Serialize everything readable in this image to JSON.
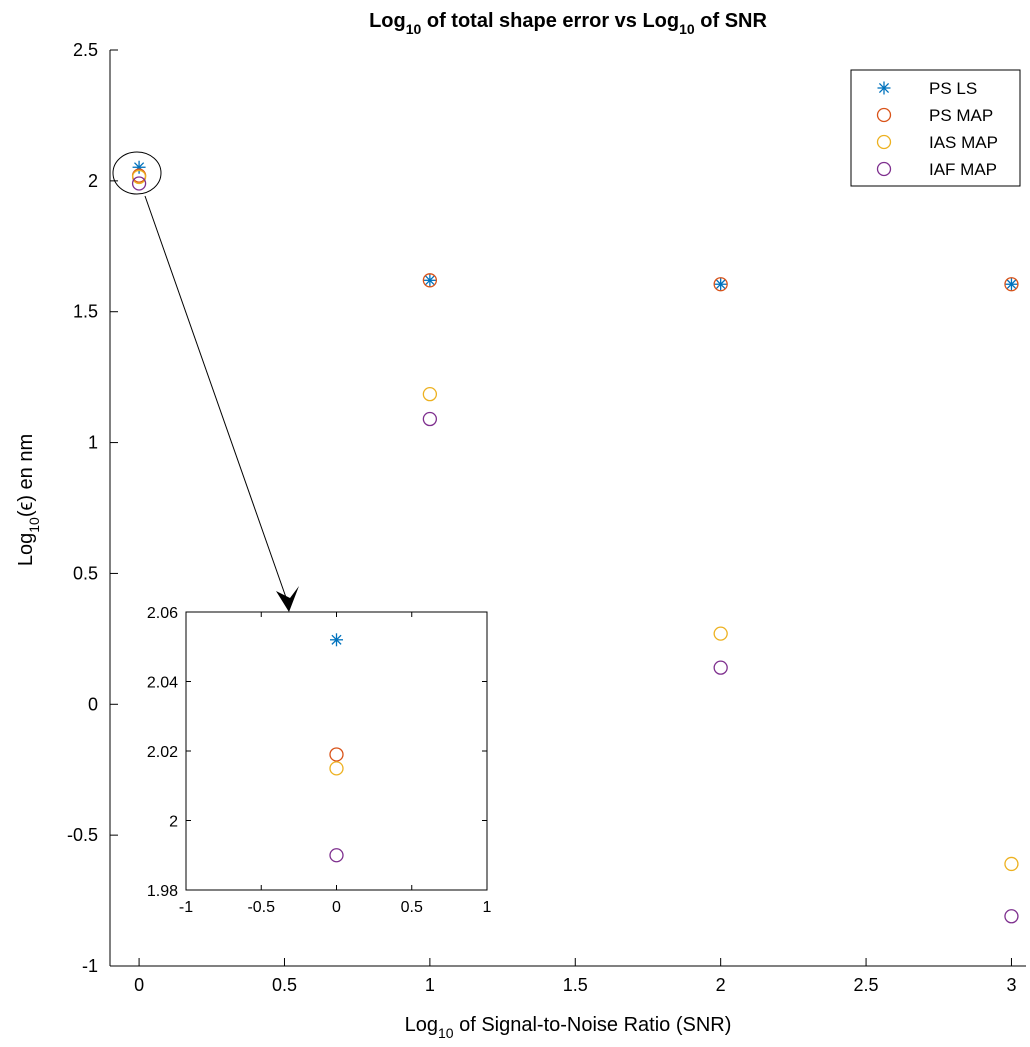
{
  "chart_data": {
    "type": "scatter",
    "title": {
      "text": "Log",
      "sub": "10",
      "text2": " of total shape error vs Log",
      "sub2": "10",
      "text3": " of SNR"
    },
    "xlabel": {
      "text": "Log",
      "sub": "10",
      "text2": " of Signal-to-Noise Ratio (SNR)"
    },
    "ylabel": {
      "text": "Log",
      "sub": "10",
      "text2": "(ϵ) en nm"
    },
    "xlim": [
      -0.1,
      3.05
    ],
    "ylim": [
      -1,
      2.5
    ],
    "xticks": [
      0,
      0.5,
      1,
      1.5,
      2,
      2.5,
      3
    ],
    "xtick_labels": [
      "0",
      "0.5",
      "1",
      "1.5",
      "2",
      "2.5",
      "3"
    ],
    "yticks": [
      -1,
      -0.5,
      0,
      0.5,
      1,
      1.5,
      2,
      2.5
    ],
    "ytick_labels": [
      "-1",
      "-0.5",
      "0",
      "0.5",
      "1",
      "1.5",
      "2",
      "2.5"
    ],
    "grid": false,
    "legend_position": "top-right",
    "series": [
      {
        "name": "PS LS",
        "marker": "asterisk",
        "color": "#0072BD",
        "x": [
          0,
          1,
          2,
          3
        ],
        "y": [
          2.052,
          1.62,
          1.605,
          1.605
        ]
      },
      {
        "name": "PS MAP",
        "marker": "circle",
        "color": "#D95319",
        "x": [
          0,
          1,
          2,
          3
        ],
        "y": [
          2.02,
          1.62,
          1.605,
          1.605
        ]
      },
      {
        "name": "IAS MAP",
        "marker": "circle",
        "color": "#EDB120",
        "x": [
          0,
          1,
          2,
          3
        ],
        "y": [
          2.015,
          1.185,
          0.27,
          -0.61
        ]
      },
      {
        "name": "IAF MAP",
        "marker": "circle",
        "color": "#7E2F8E",
        "x": [
          0,
          1,
          2,
          3
        ],
        "y": [
          1.99,
          1.09,
          0.14,
          -0.81
        ]
      }
    ],
    "inset": {
      "xlim": [
        -1,
        1
      ],
      "ylim": [
        1.98,
        2.06
      ],
      "xticks": [
        -1,
        -0.5,
        0,
        0.5,
        1
      ],
      "xtick_labels": [
        "-1",
        "-0.5",
        "0",
        "0.5",
        "1"
      ],
      "yticks": [
        1.98,
        2,
        2.02,
        2.04,
        2.06
      ],
      "ytick_labels": [
        "1.98",
        "2",
        "2.02",
        "2.04",
        "2.06"
      ],
      "series": [
        {
          "name": "PS LS",
          "marker": "asterisk",
          "color": "#0072BD",
          "x": [
            0
          ],
          "y": [
            2.052
          ]
        },
        {
          "name": "PS MAP",
          "marker": "circle",
          "color": "#D95319",
          "x": [
            0
          ],
          "y": [
            2.019
          ]
        },
        {
          "name": "IAS MAP",
          "marker": "circle",
          "color": "#EDB120",
          "x": [
            0
          ],
          "y": [
            2.015
          ]
        },
        {
          "name": "IAF MAP",
          "marker": "circle",
          "color": "#7E2F8E",
          "x": [
            0
          ],
          "y": [
            1.99
          ]
        }
      ]
    }
  }
}
